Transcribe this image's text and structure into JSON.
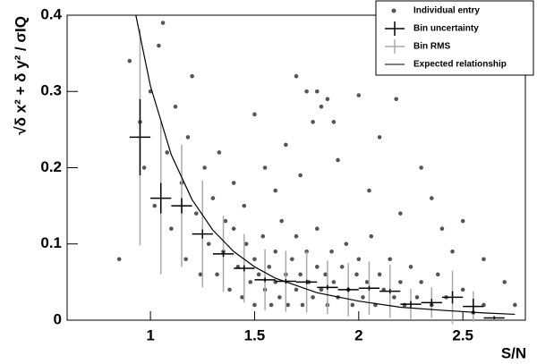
{
  "chart_data": {
    "type": "scatter",
    "x_label": "S/N",
    "y_label": "√δ x² + δ y² / σIQ",
    "xlim": [
      0.6,
      2.8
    ],
    "ylim": [
      0,
      0.4
    ],
    "xticks": [
      1,
      1.5,
      2,
      2.5
    ],
    "yticks": [
      0,
      0.1,
      0.2,
      0.3,
      0.4
    ],
    "series": [
      {
        "name": "Individual entry",
        "type": "scatter",
        "color": "#555555",
        "x": [
          1.32,
          1.35,
          1.38,
          1.4,
          1.42,
          1.44,
          1.46,
          1.48,
          1.5,
          1.5,
          1.52,
          1.54,
          1.55,
          1.57,
          1.58,
          1.6,
          1.6,
          1.62,
          1.63,
          1.65,
          1.66,
          1.68,
          1.7,
          1.7,
          1.72,
          1.73,
          1.75,
          1.76,
          1.78,
          1.8,
          1.8,
          1.82,
          1.84,
          1.85,
          1.87,
          1.88,
          1.9,
          1.92,
          1.94,
          1.95,
          1.97,
          1.99,
          2.0,
          2.02,
          2.04,
          2.06,
          2.08,
          2.1,
          2.12,
          2.15,
          2.17,
          2.2,
          2.22,
          2.25,
          2.28,
          2.3,
          2.35,
          2.38,
          2.42,
          2.5,
          2.55,
          2.6,
          0.85,
          0.9,
          0.95,
          0.97,
          1.0,
          1.02,
          1.04,
          1.06,
          1.08,
          1.1,
          1.12,
          1.15,
          1.17,
          1.18,
          1.2,
          1.22,
          1.24,
          1.26,
          1.28,
          1.3,
          1.33,
          1.36,
          1.4,
          1.45,
          1.5,
          1.55,
          1.6,
          1.65,
          1.7,
          1.72,
          1.75,
          1.78,
          1.8,
          1.82,
          1.85,
          1.88,
          1.9,
          2.0,
          2.05,
          2.1,
          2.18,
          2.2,
          2.3,
          2.35,
          2.4,
          2.45,
          2.5,
          2.6,
          2.7,
          2.75
        ],
        "values": [
          0.06,
          0.09,
          0.04,
          0.12,
          0.07,
          0.03,
          0.1,
          0.05,
          0.08,
          0.02,
          0.06,
          0.11,
          0.04,
          0.07,
          0.02,
          0.09,
          0.05,
          0.03,
          0.13,
          0.06,
          0.02,
          0.08,
          0.04,
          0.11,
          0.06,
          0.02,
          0.09,
          0.05,
          0.03,
          0.07,
          0.12,
          0.04,
          0.06,
          0.02,
          0.09,
          0.05,
          0.03,
          0.07,
          0.1,
          0.04,
          0.02,
          0.06,
          0.08,
          0.03,
          0.05,
          0.11,
          0.02,
          0.06,
          0.04,
          0.08,
          0.03,
          0.05,
          0.02,
          0.07,
          0.03,
          0.05,
          0.02,
          0.06,
          0.03,
          0.04,
          0.01,
          0.02,
          0.08,
          0.34,
          0.26,
          0.2,
          0.3,
          0.15,
          0.36,
          0.39,
          0.22,
          0.12,
          0.28,
          0.18,
          0.08,
          0.24,
          0.32,
          0.14,
          0.06,
          0.2,
          0.1,
          0.16,
          0.22,
          0.13,
          0.18,
          0.15,
          0.27,
          0.2,
          0.17,
          0.23,
          0.32,
          0.19,
          0.3,
          0.26,
          0.3,
          0.28,
          0.29,
          0.26,
          0.21,
          0.295,
          0.17,
          0.24,
          0.29,
          0.14,
          0.2,
          0.16,
          0.12,
          0.09,
          0.13,
          0.08,
          0.05,
          0.02
        ]
      },
      {
        "name": "Bin uncertainty",
        "type": "errorbar",
        "color": "#000000",
        "x": [
          0.95,
          1.05,
          1.15,
          1.25,
          1.35,
          1.45,
          1.55,
          1.65,
          1.75,
          1.85,
          1.95,
          2.05,
          2.15,
          2.25,
          2.35,
          2.45,
          2.55,
          2.65
        ],
        "values": [
          0.24,
          0.16,
          0.15,
          0.113,
          0.087,
          0.068,
          0.053,
          0.051,
          0.05,
          0.043,
          0.04,
          0.042,
          0.038,
          0.021,
          0.023,
          0.03,
          0.018,
          0.003
        ],
        "errors": [
          0.05,
          0.02,
          0.01,
          0.006,
          0.004,
          0.004,
          0.003,
          0.003,
          0.003,
          0.003,
          0.003,
          0.003,
          0.003,
          0.004,
          0.005,
          0.008,
          0.01,
          0.002
        ],
        "x_errors": [
          0.05,
          0.05,
          0.05,
          0.05,
          0.05,
          0.05,
          0.05,
          0.05,
          0.05,
          0.05,
          0.05,
          0.05,
          0.05,
          0.05,
          0.05,
          0.05,
          0.05,
          0.05
        ]
      },
      {
        "name": "Bin RMS",
        "type": "errorbar",
        "color": "#aaaaaa",
        "x": [
          0.95,
          1.05,
          1.15,
          1.25,
          1.35,
          1.45,
          1.55,
          1.65,
          1.75,
          1.85,
          1.95,
          2.05,
          2.15,
          2.25,
          2.35,
          2.45,
          2.55,
          2.65
        ],
        "values": [
          0.24,
          0.16,
          0.15,
          0.113,
          0.087,
          0.068,
          0.053,
          0.051,
          0.05,
          0.043,
          0.04,
          0.042,
          0.038,
          0.021,
          0.023,
          0.03,
          0.018,
          0.003
        ],
        "errors": [
          0.142,
          0.1,
          0.08,
          0.07,
          0.05,
          0.045,
          0.04,
          0.04,
          0.04,
          0.035,
          0.035,
          0.035,
          0.035,
          0.02,
          0.02,
          0.035,
          0.02,
          0.003
        ]
      },
      {
        "name": "Expected relationship",
        "type": "line",
        "color": "#000000",
        "x": [
          0.93,
          1.0,
          1.1,
          1.2,
          1.3,
          1.4,
          1.5,
          1.6,
          1.8,
          2.0,
          2.2,
          2.4,
          2.6,
          2.75
        ],
        "values": [
          0.4,
          0.307,
          0.217,
          0.158,
          0.118,
          0.09,
          0.07,
          0.055,
          0.036,
          0.025,
          0.017,
          0.013,
          0.0095,
          0.0077
        ]
      }
    ]
  }
}
